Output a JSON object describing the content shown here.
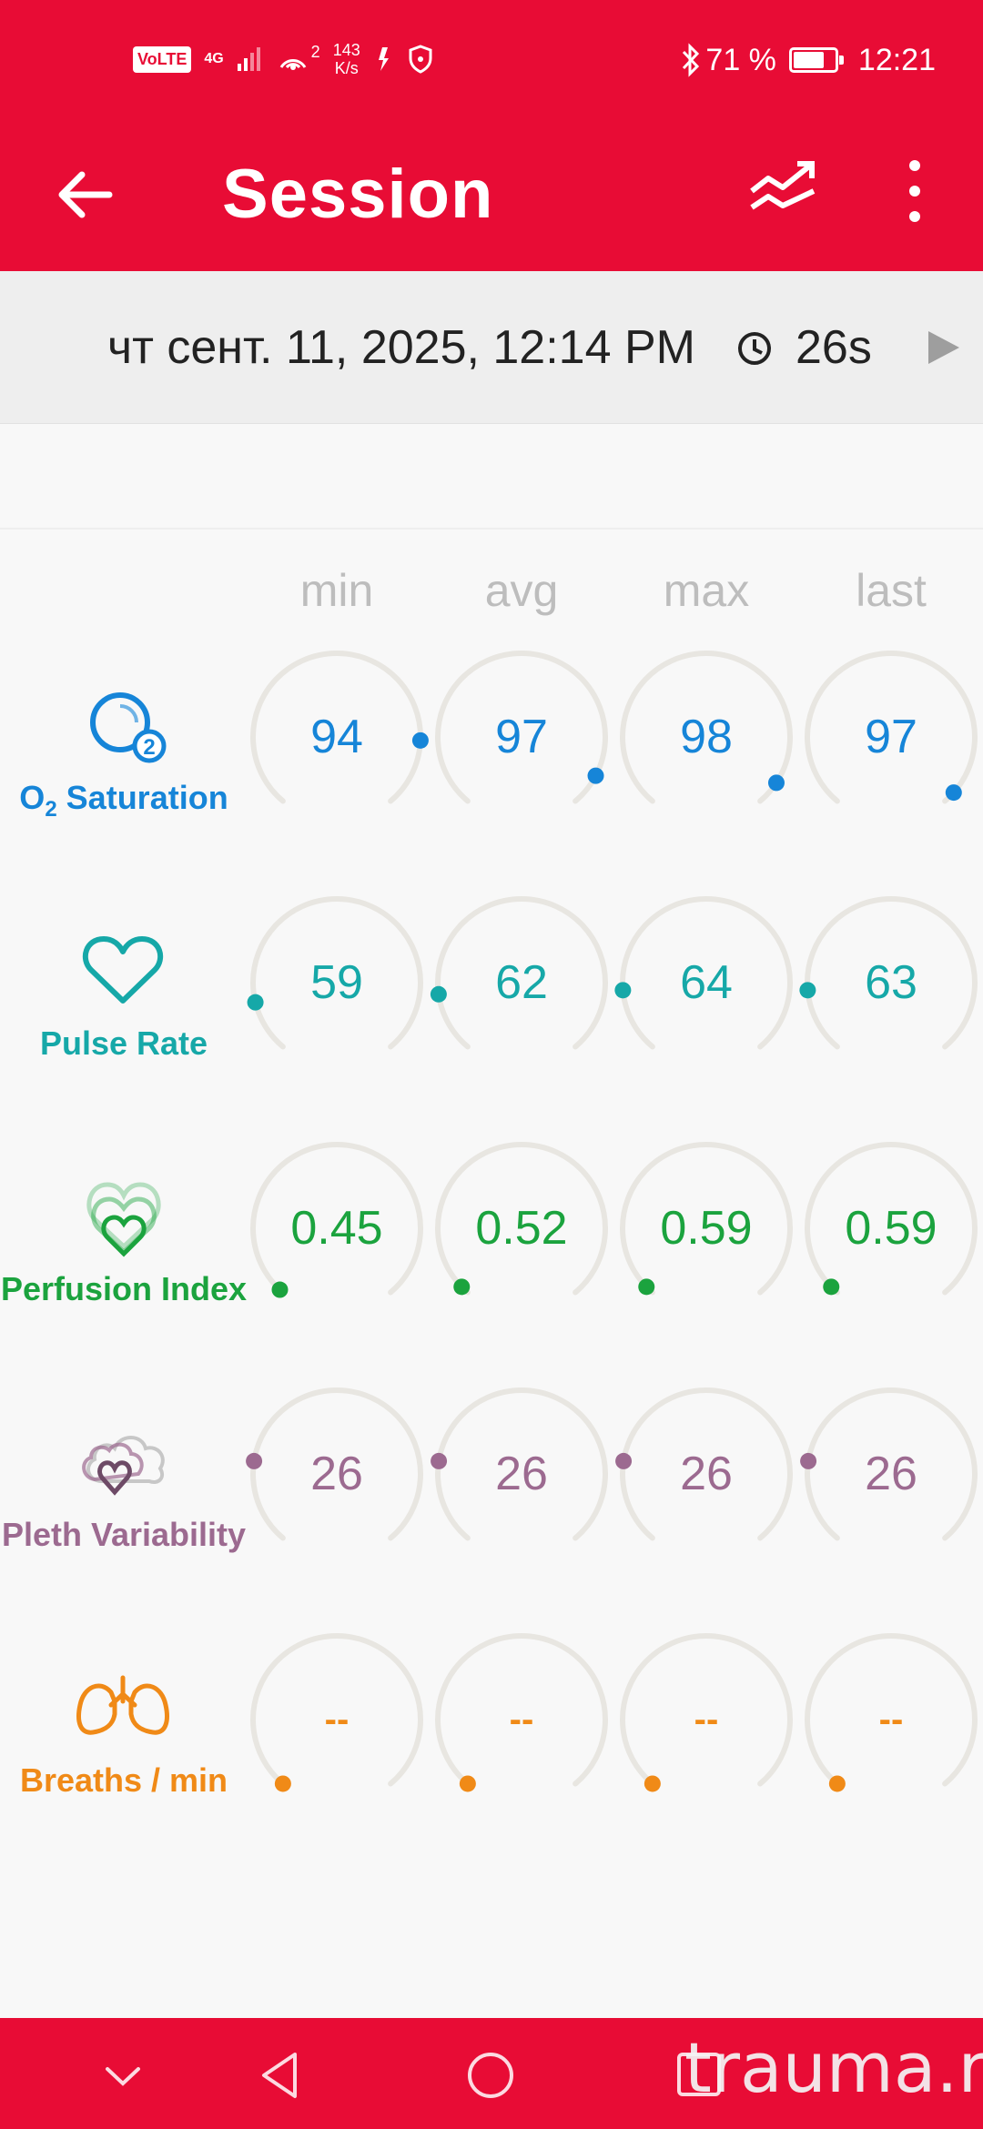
{
  "status_bar": {
    "volte": "VoLTE",
    "network": "4G",
    "hotspot_count": "2",
    "speed_value": "143",
    "speed_unit": "K/s",
    "battery_percent": "71 %",
    "battery_level": 0.71,
    "time": "12:21"
  },
  "app_bar": {
    "title": "Session",
    "icons": [
      "back-arrow-icon",
      "trend-icon",
      "more-vert-icon"
    ]
  },
  "session": {
    "date": "чт сент. 11, 2025, 12:14 PM",
    "duration": "26s"
  },
  "columns": [
    "min",
    "avg",
    "max",
    "last"
  ],
  "metrics": [
    {
      "label_main": "O",
      "label_sub": "2",
      "label_rest": " Saturation",
      "color": "#1685d8",
      "icon": "o2-saturation-icon",
      "values": [
        "94",
        "97",
        "98",
        "97"
      ],
      "levels": [
        0.83,
        0.92,
        0.94,
        0.97
      ]
    },
    {
      "label": "Pulse Rate",
      "color": "#16a8a8",
      "icon": "heart-icon",
      "values": [
        "59",
        "62",
        "64",
        "63"
      ],
      "levels": [
        0.13,
        0.15,
        0.16,
        0.16
      ]
    },
    {
      "label": "Perfusion Index",
      "color": "#1ba33e",
      "icon": "perfusion-hearts-icon",
      "values": [
        "0.45",
        "0.52",
        "0.59",
        "0.59"
      ],
      "levels": [
        0.01,
        0.02,
        0.02,
        0.02
      ]
    },
    {
      "label": "Pleth Variability",
      "color": "#9c6a90",
      "icon": "pleth-variability-icon",
      "values": [
        "26",
        "26",
        "26",
        "26"
      ],
      "levels": [
        0.21,
        0.21,
        0.21,
        0.21
      ]
    },
    {
      "label": "Breaths / min",
      "color": "#f08a17",
      "icon": "lungs-icon",
      "values": [
        "--",
        "--",
        "--",
        "--"
      ],
      "levels": [
        0,
        0,
        0,
        0
      ]
    }
  ],
  "nav_bar": {
    "icons": [
      "nav-hide-icon",
      "nav-back-icon",
      "nav-home-icon",
      "nav-recents-icon"
    ]
  },
  "watermark": "trauma.ru"
}
